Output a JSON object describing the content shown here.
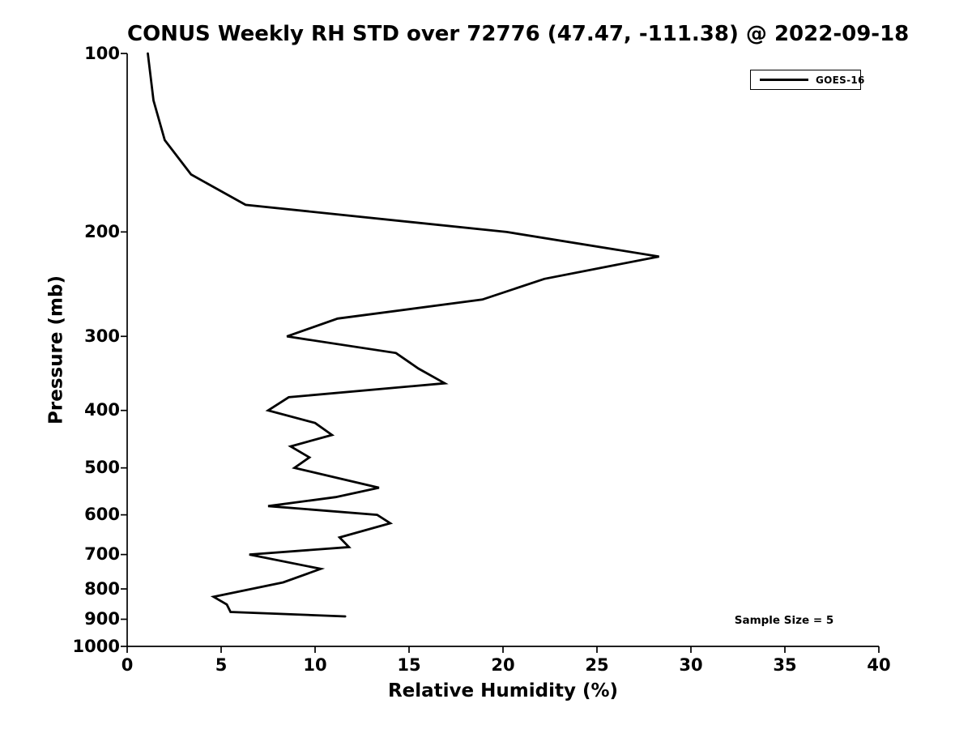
{
  "chart_data": {
    "type": "line",
    "title": "CONUS Weekly RH STD over 72776 (47.47, -111.38) @ 2022-09-18",
    "xlabel": "Relative Humidity (%)",
    "ylabel": "Pressure (mb)",
    "xlim": [
      0,
      40
    ],
    "ylim": [
      1000,
      100
    ],
    "yscale": "log",
    "grid": false,
    "x_ticks": [
      0,
      5,
      10,
      15,
      20,
      25,
      30,
      35,
      40
    ],
    "y_ticks": [
      100,
      200,
      300,
      400,
      500,
      600,
      700,
      800,
      900,
      1000
    ],
    "legend": {
      "position": "upper right",
      "entries": [
        {
          "label": "GOES-16",
          "color": "#000000"
        }
      ]
    },
    "annotation": "Sample Size = 5",
    "series": [
      {
        "name": "GOES-16",
        "color": "#000000",
        "points": [
          [
            1.1,
            100
          ],
          [
            1.4,
            120
          ],
          [
            2.0,
            140
          ],
          [
            3.4,
            160
          ],
          [
            6.3,
            180
          ],
          [
            20.2,
            200
          ],
          [
            28.3,
            220
          ],
          [
            22.2,
            240
          ],
          [
            18.9,
            260
          ],
          [
            11.2,
            280
          ],
          [
            8.5,
            300
          ],
          [
            14.3,
            320
          ],
          [
            15.5,
            340
          ],
          [
            16.9,
            360
          ],
          [
            8.6,
            380
          ],
          [
            7.5,
            400
          ],
          [
            10.0,
            420
          ],
          [
            10.9,
            440
          ],
          [
            8.7,
            460
          ],
          [
            9.7,
            480
          ],
          [
            8.9,
            500
          ],
          [
            11.2,
            520
          ],
          [
            13.4,
            540
          ],
          [
            11.1,
            560
          ],
          [
            7.5,
            580
          ],
          [
            13.3,
            600
          ],
          [
            14.0,
            620
          ],
          [
            11.3,
            655
          ],
          [
            11.8,
            680
          ],
          [
            6.5,
            700
          ],
          [
            10.3,
            740
          ],
          [
            8.3,
            780
          ],
          [
            4.6,
            825
          ],
          [
            5.3,
            850
          ],
          [
            5.5,
            875
          ],
          [
            11.6,
            890
          ]
        ]
      }
    ]
  }
}
